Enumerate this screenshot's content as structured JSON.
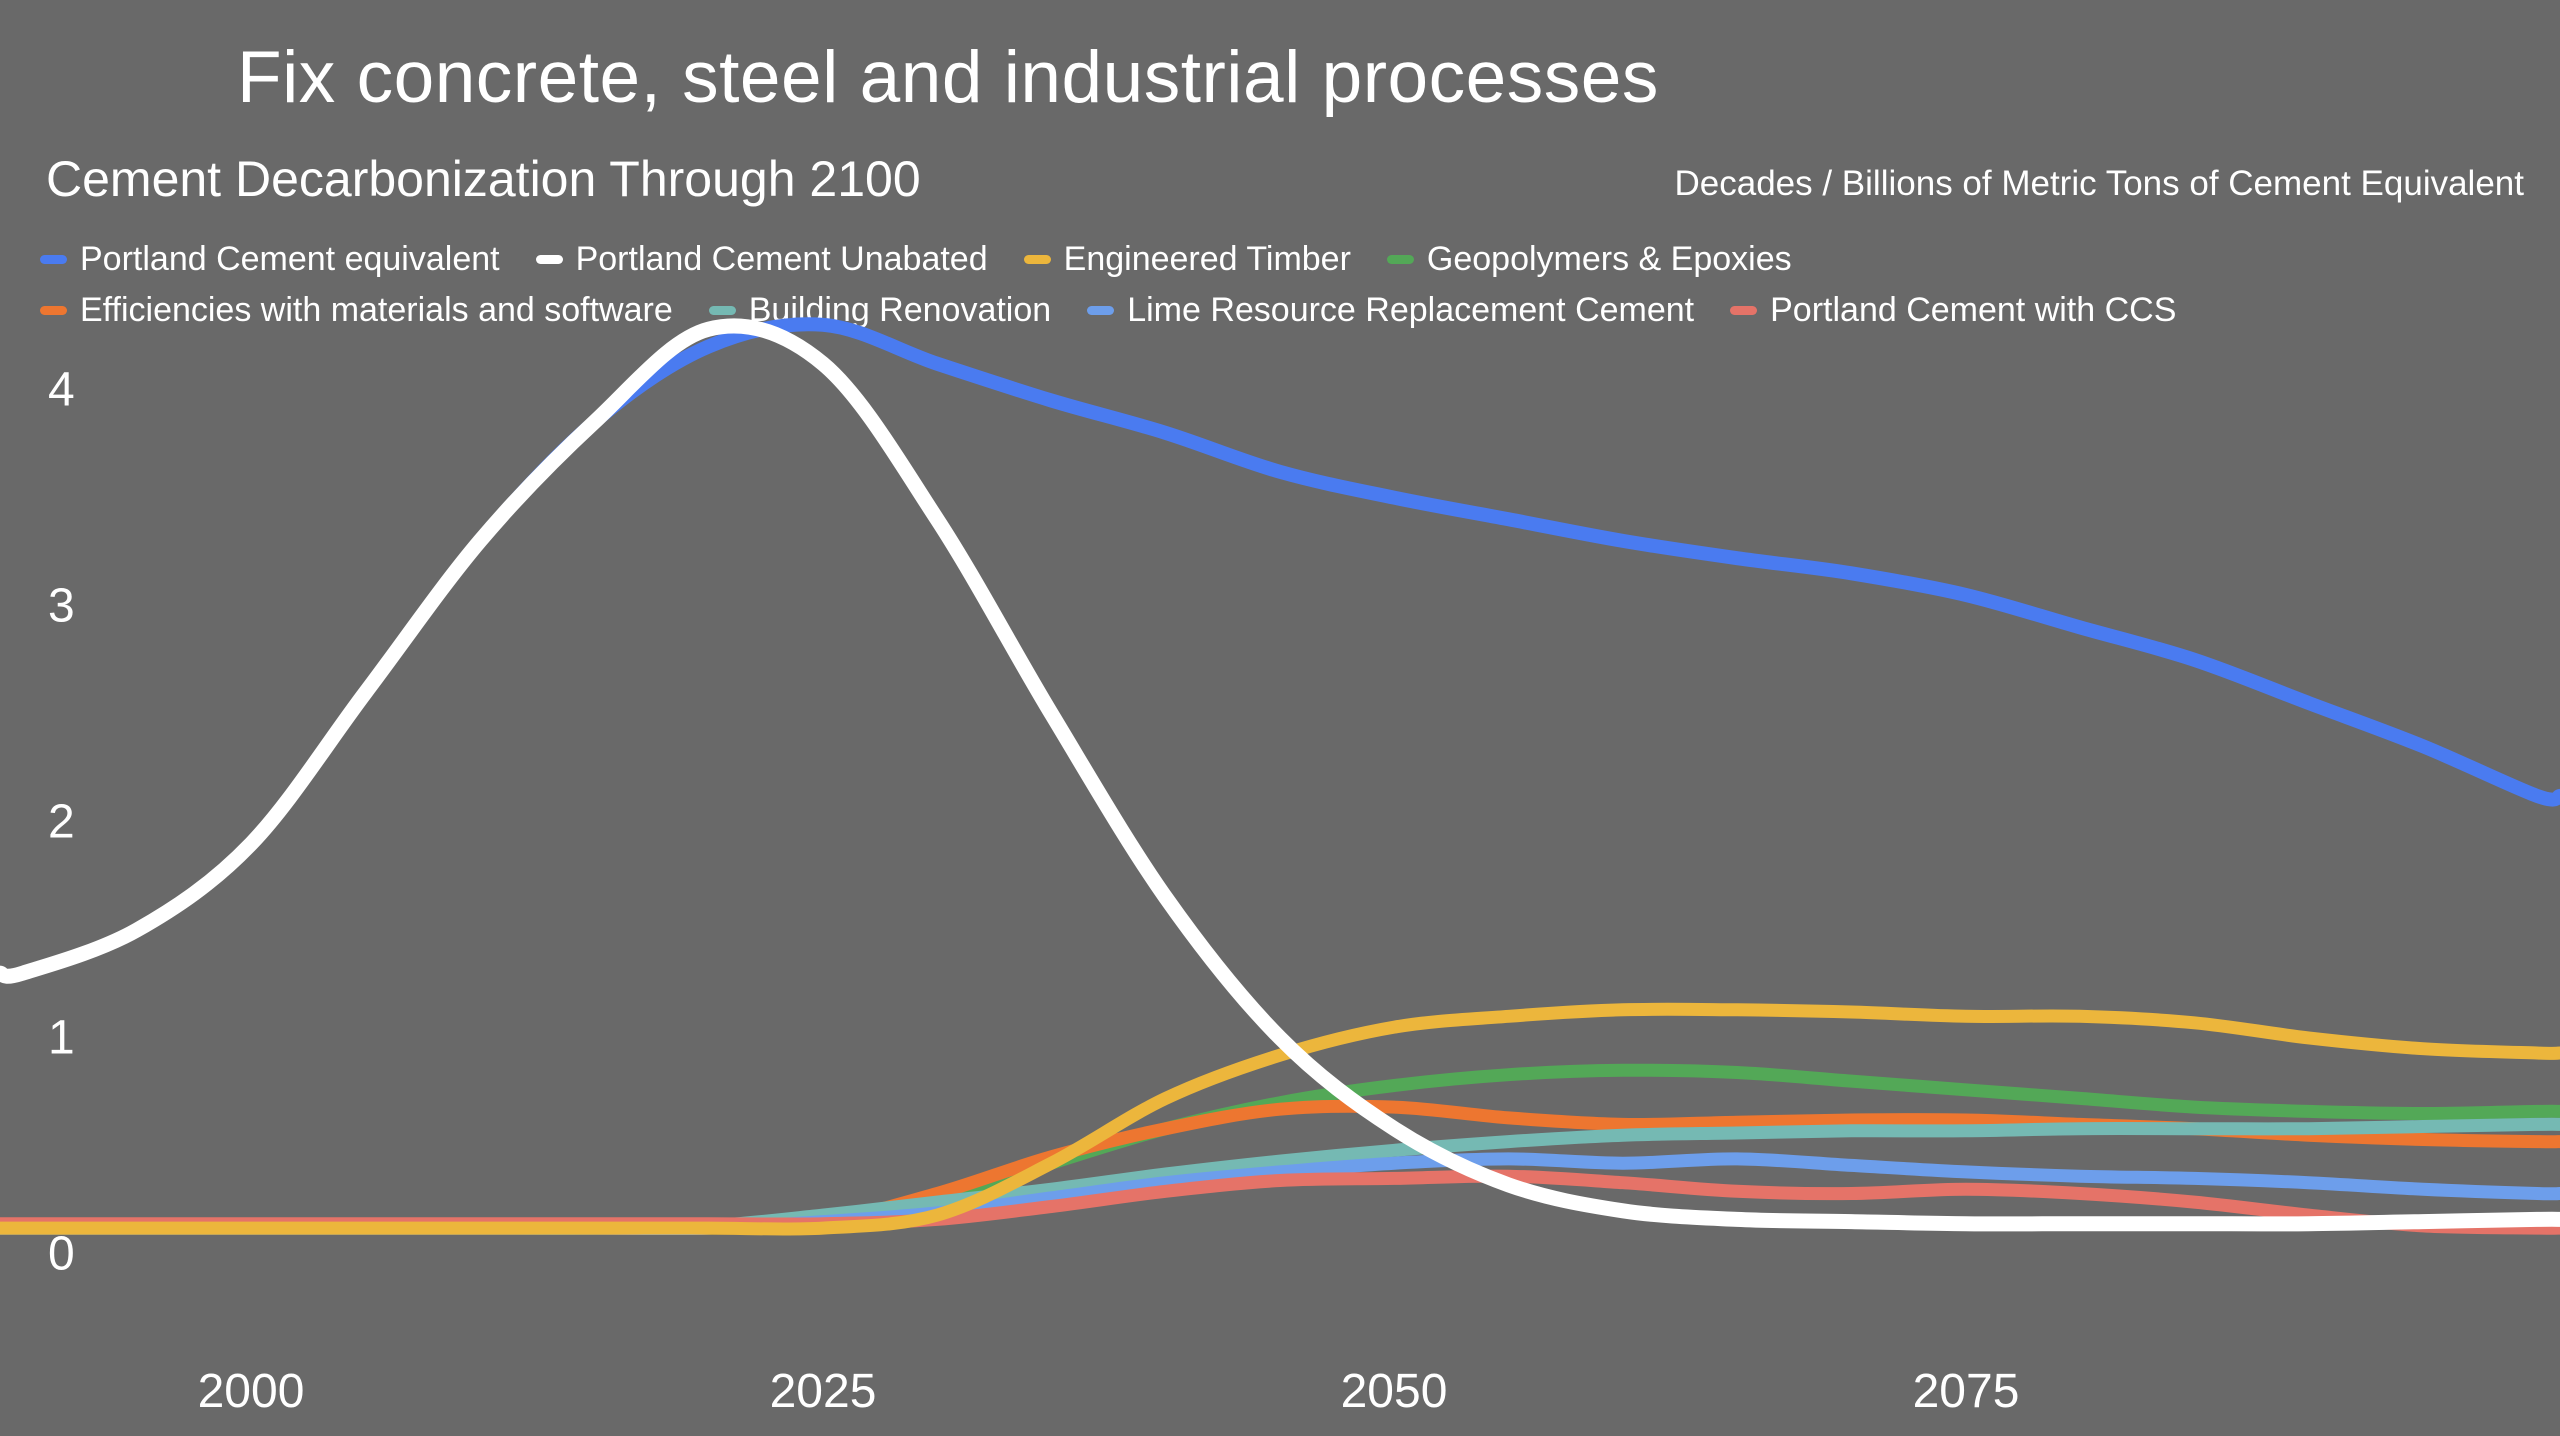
{
  "page": {
    "title": "Fix concrete, steel and industrial processes"
  },
  "chart_data": {
    "type": "line",
    "title": "Cement Decarbonization Through 2100",
    "units_label": "Decades / Billions of Metric Tons of Cement Equivalent",
    "xlabel": "Decades",
    "ylabel": "Billions of Metric Tons of Cement Equivalent",
    "background": "#696969",
    "text_color": "#ffffff",
    "grid": false,
    "legend_position": "top-left two rows",
    "xlim": [
      1989,
      2101
    ],
    "ylim": [
      0,
      4.85
    ],
    "xticks": [
      "2000",
      "2025",
      "2050",
      "2075"
    ],
    "xtick_values": [
      2000,
      2025,
      2050,
      2075
    ],
    "yticks": [
      "4",
      "3",
      "2",
      "1",
      "0"
    ],
    "ytick_values": [
      4,
      3,
      2,
      1,
      0
    ],
    "x": [
      1990,
      1995,
      2000,
      2005,
      2010,
      2015,
      2020,
      2025,
      2030,
      2035,
      2040,
      2045,
      2050,
      2055,
      2060,
      2065,
      2070,
      2075,
      2080,
      2085,
      2090,
      2095,
      2100
    ],
    "series": [
      {
        "name": "Portland Cement equivalent",
        "color": "#4a7bf0",
        "values": [
          1.3,
          1.5,
          1.9,
          2.6,
          3.3,
          3.85,
          4.2,
          4.3,
          4.12,
          3.95,
          3.8,
          3.62,
          3.5,
          3.4,
          3.3,
          3.22,
          3.15,
          3.05,
          2.9,
          2.75,
          2.55,
          2.35,
          2.12
        ]
      },
      {
        "name": "Portland Cement Unabated",
        "color": "#ffffff",
        "values": [
          1.3,
          1.5,
          1.9,
          2.6,
          3.3,
          3.85,
          4.28,
          4.12,
          3.4,
          2.5,
          1.65,
          1.0,
          0.58,
          0.32,
          0.2,
          0.16,
          0.15,
          0.14,
          0.14,
          0.14,
          0.14,
          0.15,
          0.16
        ]
      },
      {
        "name": "Engineered Timber",
        "color": "#ecb63c",
        "values": [
          0.12,
          0.12,
          0.12,
          0.12,
          0.12,
          0.12,
          0.12,
          0.12,
          0.18,
          0.42,
          0.72,
          0.92,
          1.05,
          1.1,
          1.13,
          1.13,
          1.12,
          1.1,
          1.1,
          1.07,
          1.0,
          0.95,
          0.93
        ]
      },
      {
        "name": "Geopolymers & Epoxies",
        "color": "#53a857",
        "values": [
          0.12,
          0.12,
          0.12,
          0.12,
          0.12,
          0.12,
          0.12,
          0.14,
          0.25,
          0.42,
          0.58,
          0.7,
          0.78,
          0.83,
          0.85,
          0.84,
          0.8,
          0.76,
          0.72,
          0.68,
          0.66,
          0.65,
          0.66
        ]
      },
      {
        "name": "Efficiencies with materials and software",
        "color": "#ed7630",
        "values": [
          0.12,
          0.12,
          0.12,
          0.12,
          0.12,
          0.12,
          0.12,
          0.15,
          0.28,
          0.45,
          0.58,
          0.67,
          0.68,
          0.63,
          0.6,
          0.61,
          0.62,
          0.62,
          0.6,
          0.58,
          0.55,
          0.53,
          0.52
        ]
      },
      {
        "name": "Building Renovation",
        "color": "#75b9b3",
        "values": [
          0.12,
          0.12,
          0.12,
          0.12,
          0.12,
          0.12,
          0.13,
          0.18,
          0.24,
          0.3,
          0.37,
          0.43,
          0.48,
          0.52,
          0.55,
          0.56,
          0.57,
          0.57,
          0.58,
          0.58,
          0.58,
          0.59,
          0.6
        ]
      },
      {
        "name": "Lime Resource Replacement Cement",
        "color": "#6d9eeb",
        "values": [
          0.12,
          0.12,
          0.12,
          0.12,
          0.12,
          0.12,
          0.12,
          0.15,
          0.19,
          0.26,
          0.33,
          0.38,
          0.42,
          0.44,
          0.42,
          0.44,
          0.41,
          0.38,
          0.36,
          0.35,
          0.33,
          0.3,
          0.28
        ]
      },
      {
        "name": "Portland Cement with CCS",
        "color": "#e57368",
        "values": [
          0.14,
          0.14,
          0.14,
          0.14,
          0.14,
          0.14,
          0.14,
          0.14,
          0.16,
          0.22,
          0.29,
          0.34,
          0.35,
          0.36,
          0.33,
          0.29,
          0.28,
          0.3,
          0.28,
          0.24,
          0.18,
          0.13,
          0.12
        ]
      }
    ]
  }
}
